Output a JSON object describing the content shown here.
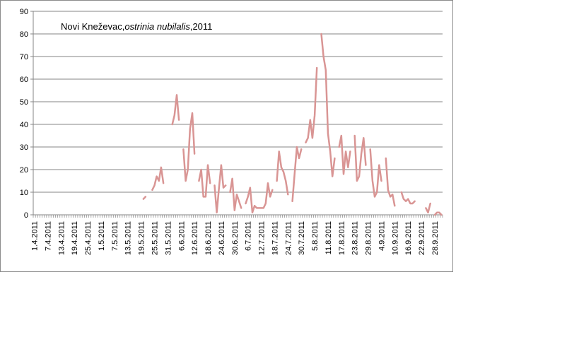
{
  "chart_data": {
    "type": "line",
    "title": {
      "place": "Novi Kneževac,",
      "species": "ostrinia nubilalis",
      "year": ",2011"
    },
    "xlabel": "",
    "ylabel": "",
    "ylim": [
      0,
      90
    ],
    "y_ticks": [
      0,
      10,
      20,
      30,
      40,
      50,
      60,
      70,
      80,
      90
    ],
    "x_start": "2011-04-01",
    "x_end": "2011-10-02",
    "x_tick_labels": [
      "1.4.2011",
      "7.4.2011",
      "13.4.2011",
      "19.4.2011",
      "25.4.2011",
      "1.5.2011",
      "7.5.2011",
      "13.5.2011",
      "19.5.2011",
      "25.5.2011",
      "31.5.2011",
      "6.6.2011",
      "12.6.2011",
      "18.6.2011",
      "24.6.2011",
      "30.6.2011",
      "6.7.2011",
      "12.7.2011",
      "18.7.2011",
      "24.7.2011",
      "30.7.2011",
      "5.8.2011",
      "11.8.2011",
      "17.8.2011",
      "23.8.2011",
      "29.8.2011",
      "4.9.2011",
      "10.9.2011",
      "16.9.2011",
      "22.9.2011",
      "28.9.2011"
    ],
    "grid": "horizontal",
    "line_color": "#d99594",
    "series": [
      {
        "segments": [
          [
            [
              "2011-05-20",
              7
            ],
            [
              "2011-05-21",
              8
            ]
          ],
          [
            [
              "2011-05-24",
              11
            ],
            [
              "2011-05-25",
              13
            ],
            [
              "2011-05-26",
              17
            ],
            [
              "2011-05-27",
              15
            ],
            [
              "2011-05-28",
              21
            ],
            [
              "2011-05-29",
              14
            ]
          ],
          [
            [
              "2011-06-02",
              40
            ],
            [
              "2011-06-03",
              44
            ],
            [
              "2011-06-04",
              53
            ],
            [
              "2011-06-05",
              42
            ]
          ],
          [
            [
              "2011-06-07",
              29
            ],
            [
              "2011-06-08",
              15
            ],
            [
              "2011-06-09",
              20
            ],
            [
              "2011-06-10",
              38
            ],
            [
              "2011-06-11",
              45
            ],
            [
              "2011-06-12",
              27
            ]
          ],
          [
            [
              "2011-06-14",
              15
            ],
            [
              "2011-06-15",
              20
            ],
            [
              "2011-06-16",
              8
            ],
            [
              "2011-06-17",
              8
            ],
            [
              "2011-06-18",
              22
            ],
            [
              "2011-06-19",
              14
            ]
          ],
          [
            [
              "2011-06-21",
              13
            ],
            [
              "2011-06-22",
              1
            ],
            [
              "2011-06-23",
              12
            ],
            [
              "2011-06-24",
              22
            ],
            [
              "2011-06-25",
              12
            ],
            [
              "2011-06-26",
              13
            ]
          ],
          [
            [
              "2011-06-28",
              10
            ],
            [
              "2011-06-29",
              16
            ],
            [
              "2011-06-30",
              2
            ],
            [
              "2011-07-01",
              9
            ],
            [
              "2011-07-02",
              6
            ],
            [
              "2011-07-03",
              3
            ]
          ],
          [
            [
              "2011-07-05",
              5
            ],
            [
              "2011-07-06",
              8
            ],
            [
              "2011-07-07",
              12
            ],
            [
              "2011-07-08",
              1
            ],
            [
              "2011-07-09",
              4
            ],
            [
              "2011-07-10",
              3
            ],
            [
              "2011-07-11",
              3
            ],
            [
              "2011-07-12",
              3
            ],
            [
              "2011-07-13",
              3
            ],
            [
              "2011-07-14",
              5
            ],
            [
              "2011-07-15",
              14
            ],
            [
              "2011-07-16",
              8
            ],
            [
              "2011-07-17",
              11
            ]
          ],
          [
            [
              "2011-07-19",
              15
            ],
            [
              "2011-07-20",
              28
            ],
            [
              "2011-07-21",
              21
            ],
            [
              "2011-07-22",
              19
            ],
            [
              "2011-07-23",
              15
            ],
            [
              "2011-07-24",
              9
            ]
          ],
          [
            [
              "2011-07-26",
              6
            ],
            [
              "2011-07-27",
              18
            ],
            [
              "2011-07-28",
              30
            ],
            [
              "2011-07-29",
              25
            ],
            [
              "2011-07-30",
              29
            ]
          ],
          [
            [
              "2011-08-01",
              32
            ],
            [
              "2011-08-02",
              34
            ],
            [
              "2011-08-03",
              42
            ],
            [
              "2011-08-04",
              34
            ],
            [
              "2011-08-05",
              44
            ],
            [
              "2011-08-06",
              65
            ]
          ],
          [
            [
              "2011-08-08",
              80
            ],
            [
              "2011-08-09",
              70
            ],
            [
              "2011-08-10",
              64
            ],
            [
              "2011-08-11",
              36
            ],
            [
              "2011-08-12",
              28
            ],
            [
              "2011-08-13",
              17
            ],
            [
              "2011-08-14",
              25
            ]
          ],
          [
            [
              "2011-08-16",
              30
            ],
            [
              "2011-08-17",
              35
            ],
            [
              "2011-08-18",
              18
            ],
            [
              "2011-08-19",
              28
            ],
            [
              "2011-08-20",
              21
            ],
            [
              "2011-08-21",
              28
            ]
          ],
          [
            [
              "2011-08-23",
              35
            ],
            [
              "2011-08-24",
              15
            ],
            [
              "2011-08-25",
              17
            ],
            [
              "2011-08-26",
              27
            ],
            [
              "2011-08-27",
              34
            ],
            [
              "2011-08-28",
              22
            ]
          ],
          [
            [
              "2011-08-30",
              29
            ],
            [
              "2011-08-31",
              15
            ],
            [
              "2011-09-01",
              8
            ],
            [
              "2011-09-02",
              10
            ],
            [
              "2011-09-03",
              22
            ],
            [
              "2011-09-04",
              15
            ]
          ],
          [
            [
              "2011-09-06",
              25
            ],
            [
              "2011-09-07",
              11
            ],
            [
              "2011-09-08",
              8
            ],
            [
              "2011-09-09",
              9
            ],
            [
              "2011-09-10",
              4
            ]
          ],
          [
            [
              "2011-09-13",
              10
            ],
            [
              "2011-09-14",
              7
            ],
            [
              "2011-09-15",
              6
            ],
            [
              "2011-09-16",
              7
            ],
            [
              "2011-09-17",
              5
            ],
            [
              "2011-09-18",
              5
            ],
            [
              "2011-09-19",
              6
            ]
          ],
          [
            [
              "2011-09-24",
              3
            ],
            [
              "2011-09-25",
              1
            ],
            [
              "2011-09-26",
              5
            ]
          ],
          [
            [
              "2011-09-28",
              0
            ],
            [
              "2011-09-29",
              1
            ],
            [
              "2011-09-30",
              1
            ],
            [
              "2011-10-01",
              0
            ]
          ]
        ]
      }
    ]
  }
}
